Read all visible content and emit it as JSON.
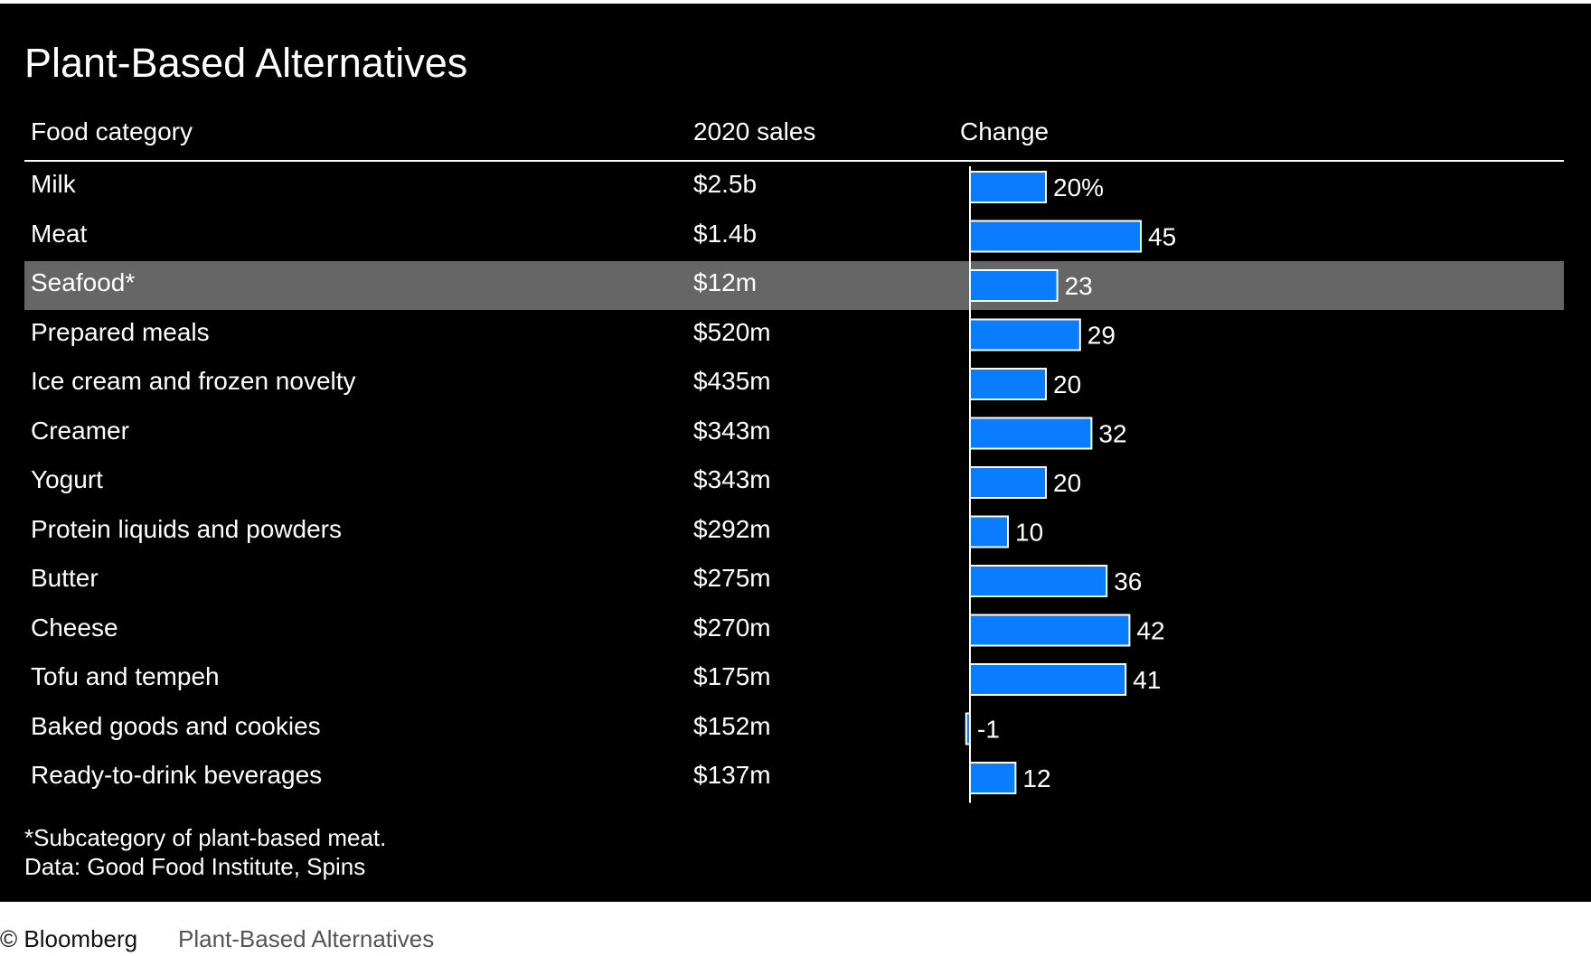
{
  "chart_data": {
    "type": "bar",
    "orientation": "horizontal",
    "title": "Plant-Based Alternatives",
    "columns": [
      "Food category",
      "2020 sales",
      "Change"
    ],
    "categories": [
      "Milk",
      "Meat",
      "Seafood*",
      "Prepared meals",
      "Ice cream and frozen novelty",
      "Creamer",
      "Yogurt",
      "Protein liquids and powders",
      "Butter",
      "Cheese",
      "Tofu and tempeh",
      "Baked goods and cookies",
      "Ready-to-drink beverages"
    ],
    "sales": [
      "$2.5b",
      "$1.4b",
      "$12m",
      "$520m",
      "$435m",
      "$343m",
      "$343m",
      "$292m",
      "$275m",
      "$270m",
      "$175m",
      "$152m",
      "$137m"
    ],
    "values": [
      20,
      45,
      23,
      29,
      20,
      32,
      20,
      10,
      36,
      42,
      41,
      -1,
      12
    ],
    "value_labels": [
      "20%",
      "45",
      "23",
      "29",
      "20",
      "32",
      "20",
      "10",
      "36",
      "42",
      "41",
      "-1",
      "12"
    ],
    "highlighted_category": "Seafood*",
    "bar_color": "#0a7cff",
    "background_color": "#000000",
    "highlight_color": "#666666",
    "footnote": "*Subcategory of plant-based meat.",
    "source": "Data: Good Food Institute, Spins"
  },
  "credit": {
    "brand": "© Bloomberg",
    "title": "Plant-Based Alternatives"
  }
}
